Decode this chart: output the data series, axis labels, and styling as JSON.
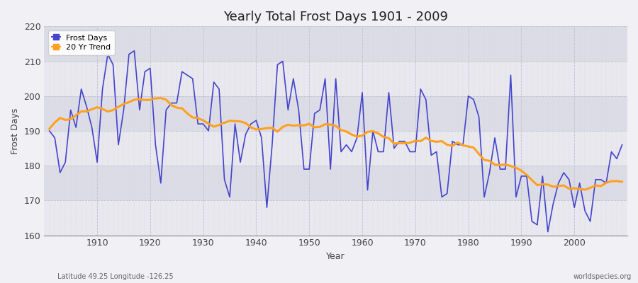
{
  "title": "Yearly Total Frost Days 1901 - 2009",
  "xlabel": "Year",
  "ylabel": "Frost Days",
  "footnote_left": "Latitude 49.25 Longitude -126.25",
  "footnote_right": "worldspecies.org",
  "legend_frost": "Frost Days",
  "legend_trend": "20 Yr Trend",
  "ylim": [
    160,
    220
  ],
  "yticks": [
    160,
    170,
    180,
    190,
    200,
    210,
    220
  ],
  "frost_color": "#4444cc",
  "trend_color": "#ffa020",
  "bg_color": "#f0f0f5",
  "band_color_light": "#ebebf0",
  "band_color_dark": "#e0e0ea",
  "years": [
    1901,
    1902,
    1903,
    1904,
    1905,
    1906,
    1907,
    1908,
    1909,
    1910,
    1911,
    1912,
    1913,
    1914,
    1915,
    1916,
    1917,
    1918,
    1919,
    1920,
    1921,
    1922,
    1923,
    1924,
    1925,
    1926,
    1927,
    1928,
    1929,
    1930,
    1931,
    1932,
    1933,
    1934,
    1935,
    1936,
    1937,
    1938,
    1939,
    1940,
    1941,
    1942,
    1943,
    1944,
    1945,
    1946,
    1947,
    1948,
    1949,
    1950,
    1951,
    1952,
    1953,
    1954,
    1955,
    1956,
    1957,
    1958,
    1959,
    1960,
    1961,
    1962,
    1963,
    1964,
    1965,
    1966,
    1967,
    1968,
    1969,
    1970,
    1971,
    1972,
    1973,
    1974,
    1975,
    1976,
    1977,
    1978,
    1979,
    1980,
    1981,
    1982,
    1983,
    1984,
    1985,
    1986,
    1987,
    1988,
    1989,
    1990,
    1991,
    1992,
    1993,
    1994,
    1995,
    1996,
    1997,
    1998,
    1999,
    2000,
    2001,
    2002,
    2003,
    2004,
    2005,
    2006,
    2007,
    2008,
    2009
  ],
  "frost_days": [
    190,
    188,
    178,
    181,
    196,
    191,
    202,
    197,
    191,
    181,
    202,
    212,
    209,
    186,
    196,
    212,
    213,
    196,
    207,
    208,
    186,
    175,
    196,
    198,
    198,
    207,
    206,
    205,
    192,
    192,
    190,
    204,
    202,
    176,
    171,
    192,
    181,
    189,
    192,
    193,
    188,
    168,
    186,
    209,
    210,
    196,
    205,
    196,
    179,
    179,
    195,
    196,
    205,
    179,
    205,
    184,
    186,
    184,
    188,
    201,
    173,
    190,
    184,
    184,
    201,
    185,
    187,
    187,
    184,
    184,
    202,
    199,
    183,
    184,
    171,
    172,
    187,
    186,
    186,
    200,
    199,
    194,
    171,
    178,
    188,
    179,
    179,
    206,
    171,
    177,
    177,
    164,
    163,
    177,
    161,
    169,
    175,
    178,
    176,
    168,
    175,
    167,
    164,
    176,
    176,
    175,
    184,
    182,
    186
  ],
  "xticks": [
    1910,
    1920,
    1930,
    1940,
    1950,
    1960,
    1970,
    1980,
    1990,
    2000
  ]
}
